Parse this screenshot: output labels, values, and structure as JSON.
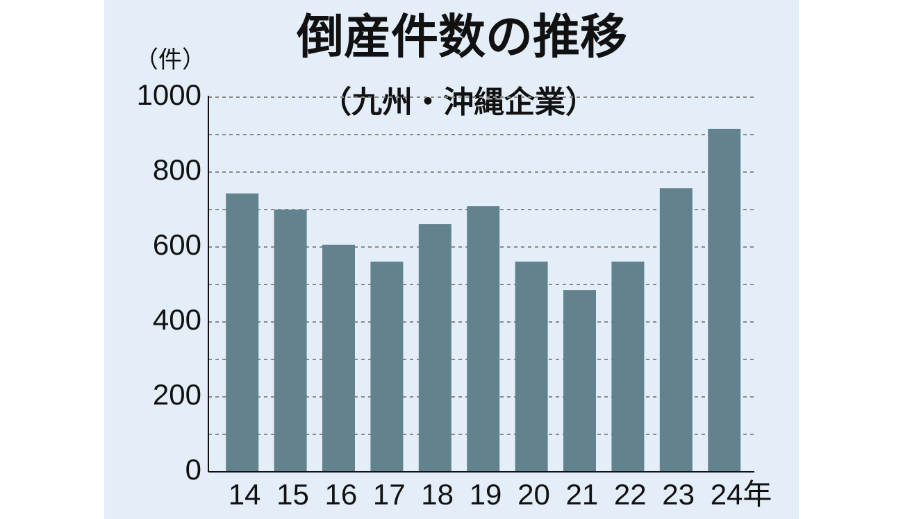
{
  "chart_data": {
    "type": "bar",
    "title": "倒産件数の推移",
    "subtitle": "（九州・沖縄企業）",
    "y_unit": "（件）",
    "categories": [
      "14",
      "15",
      "16",
      "17",
      "18",
      "19",
      "20",
      "21",
      "22",
      "23",
      "24年"
    ],
    "values": [
      743,
      700,
      606,
      561,
      661,
      709,
      561,
      485,
      561,
      757,
      915
    ],
    "color": "#62838d",
    "ylim": [
      0,
      1000
    ],
    "yticks": [
      0,
      200,
      400,
      600,
      800,
      1000
    ],
    "minor_yticks": [
      100,
      300,
      500,
      700,
      900
    ],
    "grid": true
  }
}
